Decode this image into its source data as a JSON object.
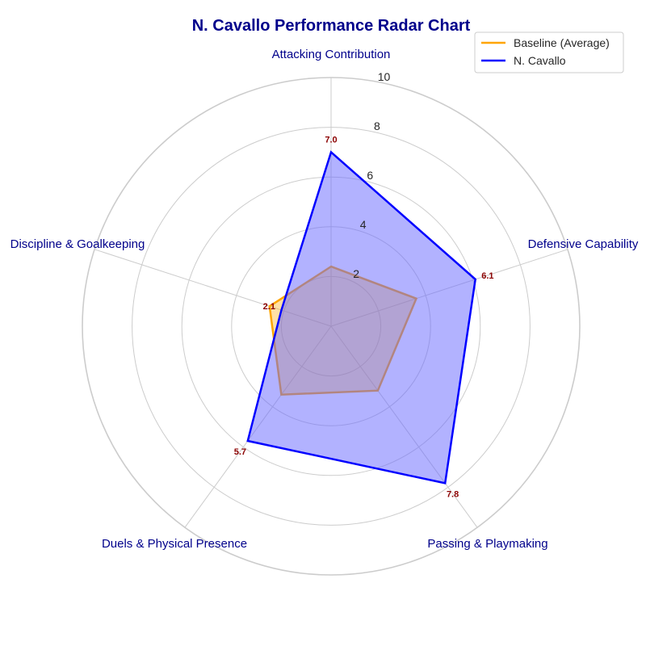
{
  "chart_data": {
    "type": "radar",
    "title": "N. Cavallo Performance Radar Chart",
    "categories": [
      "Attacking Contribution",
      "Defensive Capability",
      "Passing & Playmaking",
      "Duels & Physical Presence",
      "Discipline & Goalkeeping"
    ],
    "rlim": [
      0,
      10
    ],
    "rticks": [
      2,
      4,
      6,
      8,
      10
    ],
    "series": [
      {
        "name": "Baseline (Average)",
        "values": [
          2.4,
          3.6,
          3.2,
          3.4,
          2.6
        ],
        "color": "#ffa500"
      },
      {
        "name": "N. Cavallo",
        "values": [
          7.0,
          6.1,
          7.8,
          5.7,
          2.1
        ],
        "color": "#0000ff",
        "data_labels": [
          "7.0",
          "6.1",
          "7.8",
          "5.7",
          "2.1"
        ]
      }
    ],
    "legend_position": "top-right",
    "grid": true,
    "colors": {
      "title": "#00008b",
      "axis_label": "#00008b",
      "value_label": "#8b0000",
      "grid": "#cccccc",
      "fill": "#6666ff"
    }
  }
}
